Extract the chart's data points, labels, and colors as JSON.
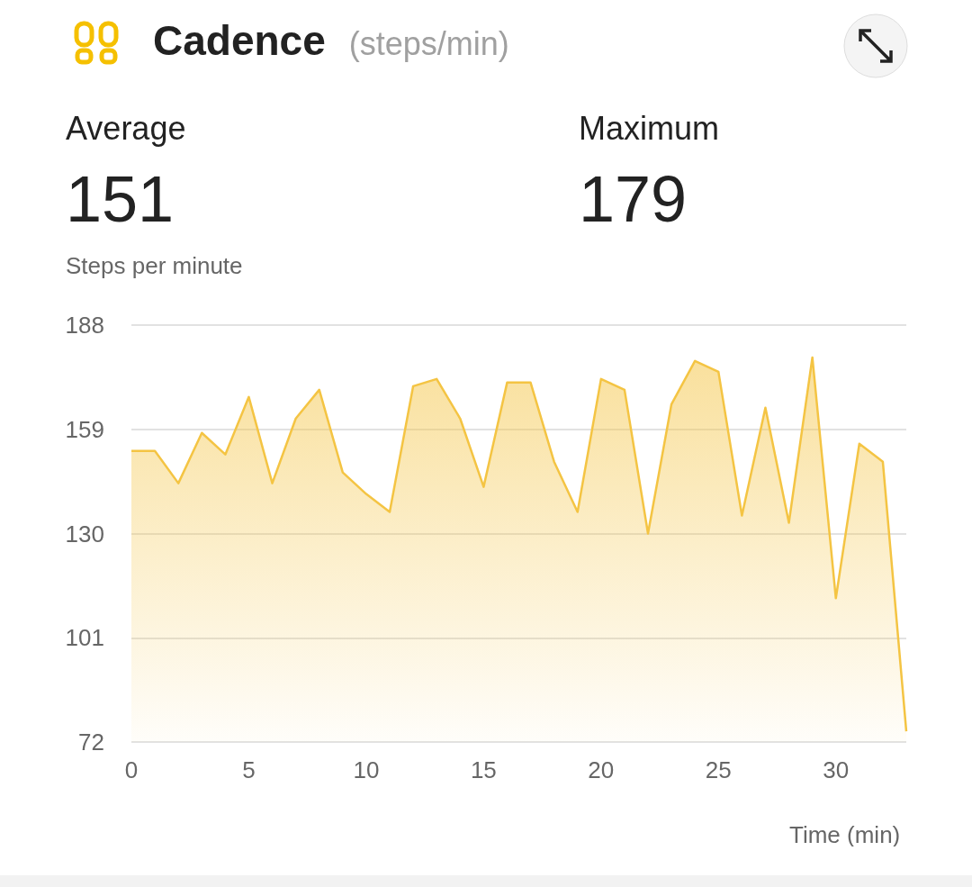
{
  "chart_data": {
    "type": "area",
    "title": "Cadence",
    "subtitle": "(steps/min)",
    "annotations": [
      "Average",
      "151",
      "Maximum",
      "179"
    ],
    "ylabel": "Steps per minute",
    "xlabel": "Time (min)",
    "x": [
      0,
      1,
      2,
      3,
      4,
      5,
      6,
      7,
      8,
      9,
      10,
      11,
      12,
      13,
      14,
      15,
      16,
      17,
      18,
      19,
      20,
      21,
      22,
      23,
      24,
      25,
      26,
      27,
      28,
      29,
      30,
      31,
      32,
      33
    ],
    "series": [
      {
        "color": "#f4c443",
        "values": [
          153,
          153,
          144,
          158,
          152,
          168,
          144,
          162,
          170,
          147,
          141,
          136,
          171,
          173,
          162,
          143,
          172,
          172,
          150,
          136,
          173,
          170,
          130,
          166,
          178,
          175,
          135,
          165,
          133,
          179,
          112,
          155,
          150,
          75
        ]
      }
    ],
    "xlim": [
      0,
      33
    ],
    "xticks": [
      0,
      5,
      10,
      15,
      20,
      25,
      30
    ],
    "ylim": [
      72,
      188
    ],
    "yticks": [
      72,
      101,
      130,
      159,
      188
    ],
    "grid": "y",
    "marker": "none",
    "line_style": "solid"
  }
}
